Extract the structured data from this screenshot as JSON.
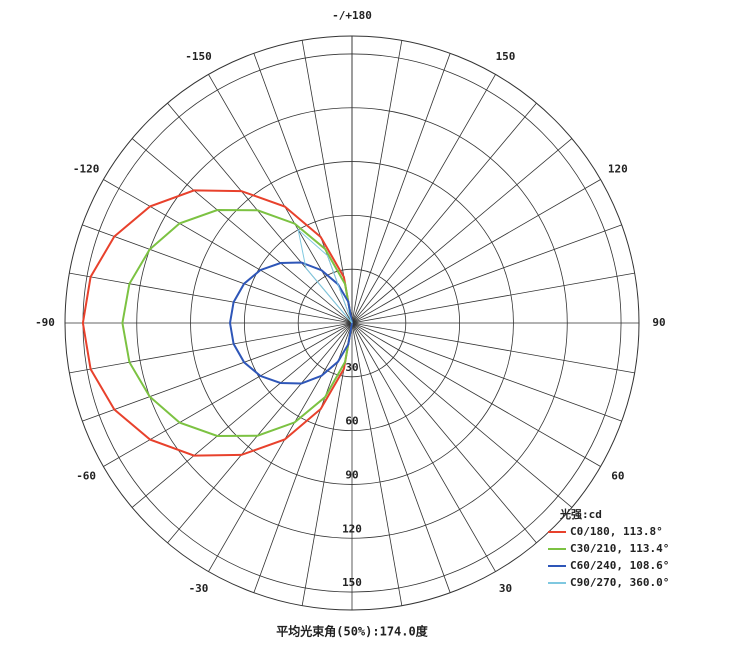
{
  "chart_data": {
    "type": "polar",
    "legend_title": "光强:cd",
    "footer": "平均光束角(50%):174.0度",
    "x": [
      -180,
      -170,
      -160,
      -150,
      -140,
      -130,
      -120,
      -110,
      -100,
      -90,
      -80,
      -70,
      -60,
      -50,
      -40,
      -30,
      -20,
      -10,
      0,
      10,
      20,
      30,
      40,
      50,
      60,
      70,
      80,
      90,
      100,
      110,
      120,
      130,
      140,
      150,
      160,
      170,
      180
    ],
    "series": [
      {
        "name": "C0/180, 113.8°",
        "color": "#e8412c",
        "values": [
          0,
          26,
          51,
          75,
          96,
          115,
          130,
          141,
          148,
          150,
          148,
          141,
          130,
          115,
          96,
          75,
          51,
          26,
          0,
          0,
          0,
          0,
          0,
          0,
          0,
          0,
          0,
          0,
          0,
          0,
          0,
          0,
          0,
          0,
          0,
          0,
          0
        ]
      },
      {
        "name": "C30/210, 113.4°",
        "color": "#7cc242",
        "values": [
          0,
          22,
          44,
          64,
          82,
          98,
          111,
          120,
          126,
          128,
          126,
          120,
          111,
          98,
          82,
          64,
          44,
          22,
          0,
          0,
          0,
          0,
          0,
          0,
          0,
          0,
          0,
          0,
          0,
          0,
          0,
          0,
          0,
          0,
          0,
          0,
          0
        ]
      },
      {
        "name": "C60/240, 108.6°",
        "color": "#2e56b8",
        "values": [
          0,
          12,
          23,
          34,
          44,
          52,
          59,
          64,
          67,
          68,
          67,
          64,
          59,
          52,
          44,
          34,
          23,
          12,
          0,
          0,
          0,
          0,
          0,
          0,
          0,
          0,
          0,
          0,
          0,
          0,
          0,
          0,
          0,
          0,
          0,
          0,
          0
        ]
      },
      {
        "name": "C90/270, 360.0°",
        "color": "#7fc8e0",
        "values": [
          0,
          0,
          40,
          60,
          40,
          0,
          0,
          0,
          0,
          0,
          0,
          0,
          0,
          0,
          0,
          0,
          0,
          0,
          0,
          0,
          0,
          0,
          0,
          0,
          0,
          0,
          0,
          0,
          0,
          0,
          0,
          0,
          0,
          0,
          0,
          0,
          0
        ]
      }
    ],
    "xticks": [
      {
        "value": 180,
        "label": "-/+180"
      },
      150,
      -150,
      120,
      -120,
      90,
      -90,
      60,
      -60,
      30,
      -30
    ],
    "rlim": [
      0,
      160
    ],
    "rticks": [
      30,
      60,
      90,
      120,
      150
    ]
  }
}
